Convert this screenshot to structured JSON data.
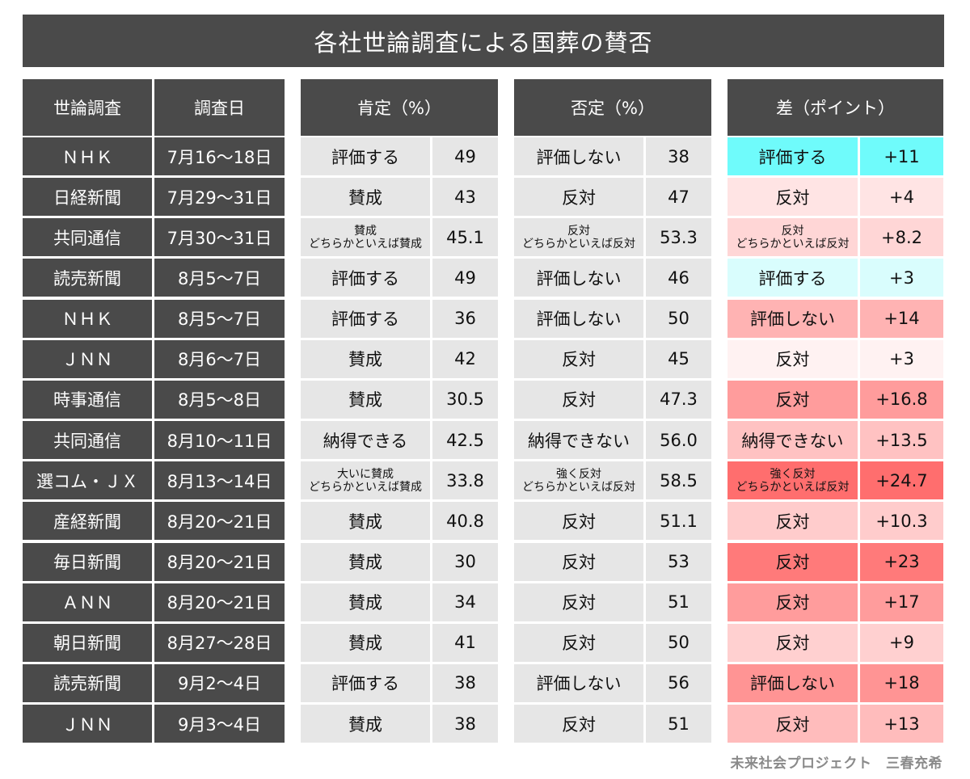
{
  "title": "各社世論調査による国葬の賛否",
  "headers": {
    "survey": "世論調査",
    "date": "調査日",
    "approve": "肯定（%）",
    "disapprove": "否定（%）",
    "diff": "差（ポイント）"
  },
  "credit": "未来社会プロジェクト　三春充希",
  "colors": {
    "header_bg": "#4a4a4a",
    "cell_bg": "#e6e6e6",
    "approve_strong": "#6ffbfb",
    "approve_light": "#d9fdfd",
    "oppose_scale": [
      "#fff2f2",
      "#ffe4e4",
      "#ffcccc",
      "#ffb3b3",
      "#ff9c9c",
      "#ff8080",
      "#ff6e6e"
    ]
  },
  "chart_data": {
    "type": "table",
    "columns": [
      "世論調査",
      "調査日",
      "肯定",
      "肯定（%）",
      "否定",
      "否定（%）",
      "差",
      "差（ポイント）"
    ],
    "rows": [
      {
        "org": "ＮＨＫ",
        "date": "7月16〜18日",
        "pos_label": "評価する",
        "pos": "49",
        "neg_label": "評価しない",
        "neg": "38",
        "diff_label": "評価する",
        "diff": "+11",
        "side": "pos",
        "shade": "#6ffbfb"
      },
      {
        "org": "日経新聞",
        "date": "7月29〜31日",
        "pos_label": "賛成",
        "pos": "43",
        "neg_label": "反対",
        "neg": "47",
        "diff_label": "反対",
        "diff": "+4",
        "side": "neg",
        "shade": "#ffe4e4"
      },
      {
        "org": "共同通信",
        "date": "7月30〜31日",
        "pos_label": "賛成\nどちらかといえば賛成",
        "pos": "45.1",
        "neg_label": "反対\nどちらかといえば反対",
        "neg": "53.3",
        "diff_label": "反対\nどちらかといえば反対",
        "diff": "+8.2",
        "side": "neg",
        "shade": "#ffd6d6"
      },
      {
        "org": "読売新聞",
        "date": "8月5〜7日",
        "pos_label": "評価する",
        "pos": "49",
        "neg_label": "評価しない",
        "neg": "46",
        "diff_label": "評価する",
        "diff": "+3",
        "side": "pos",
        "shade": "#d9fdfd"
      },
      {
        "org": "ＮＨＫ",
        "date": "8月5〜7日",
        "pos_label": "評価する",
        "pos": "36",
        "neg_label": "評価しない",
        "neg": "50",
        "diff_label": "評価しない",
        "diff": "+14",
        "side": "neg",
        "shade": "#ffb3b3"
      },
      {
        "org": "ＪＮＮ",
        "date": "8月6〜7日",
        "pos_label": "賛成",
        "pos": "42",
        "neg_label": "反対",
        "neg": "45",
        "diff_label": "反対",
        "diff": "+3",
        "side": "neg",
        "shade": "#fff2f2"
      },
      {
        "org": "時事通信",
        "date": "8月5〜8日",
        "pos_label": "賛成",
        "pos": "30.5",
        "neg_label": "反対",
        "neg": "47.3",
        "diff_label": "反対",
        "diff": "+16.8",
        "side": "neg",
        "shade": "#ff9c9c"
      },
      {
        "org": "共同通信",
        "date": "8月10〜11日",
        "pos_label": "納得できる",
        "pos": "42.5",
        "neg_label": "納得できない",
        "neg": "56.0",
        "diff_label": "納得できない",
        "diff": "+13.5",
        "side": "neg",
        "shade": "#ffc2c2"
      },
      {
        "org": "選コム・ＪＸ",
        "date": "8月13〜14日",
        "pos_label": "大いに賛成\nどちらかといえば賛成",
        "pos": "33.8",
        "neg_label": "強く反対\nどちらかといえば反対",
        "neg": "58.5",
        "diff_label": "強く反対\nどちらかといえば反対",
        "diff": "+24.7",
        "side": "neg",
        "shade": "#ff6e6e"
      },
      {
        "org": "産経新聞",
        "date": "8月20〜21日",
        "pos_label": "賛成",
        "pos": "40.8",
        "neg_label": "反対",
        "neg": "51.1",
        "diff_label": "反対",
        "diff": "+10.3",
        "side": "neg",
        "shade": "#ffcccc"
      },
      {
        "org": "毎日新聞",
        "date": "8月20〜21日",
        "pos_label": "賛成",
        "pos": "30",
        "neg_label": "反対",
        "neg": "53",
        "diff_label": "反対",
        "diff": "+23",
        "side": "neg",
        "shade": "#ff7a7a"
      },
      {
        "org": "ＡＮＮ",
        "date": "8月20〜21日",
        "pos_label": "賛成",
        "pos": "34",
        "neg_label": "反対",
        "neg": "51",
        "diff_label": "反対",
        "diff": "+17",
        "side": "neg",
        "shade": "#ff9c9c"
      },
      {
        "org": "朝日新聞",
        "date": "8月27〜28日",
        "pos_label": "賛成",
        "pos": "41",
        "neg_label": "反対",
        "neg": "50",
        "diff_label": "反対",
        "diff": "+9",
        "side": "neg",
        "shade": "#ffd0d0"
      },
      {
        "org": "読売新聞",
        "date": "9月2〜4日",
        "pos_label": "評価する",
        "pos": "38",
        "neg_label": "評価しない",
        "neg": "56",
        "diff_label": "評価しない",
        "diff": "+18",
        "side": "neg",
        "shade": "#ff9494"
      },
      {
        "org": "ＪＮＮ",
        "date": "9月3〜4日",
        "pos_label": "賛成",
        "pos": "38",
        "neg_label": "反対",
        "neg": "51",
        "diff_label": "反対",
        "diff": "+13",
        "side": "neg",
        "shade": "#ffbcbc"
      }
    ]
  }
}
